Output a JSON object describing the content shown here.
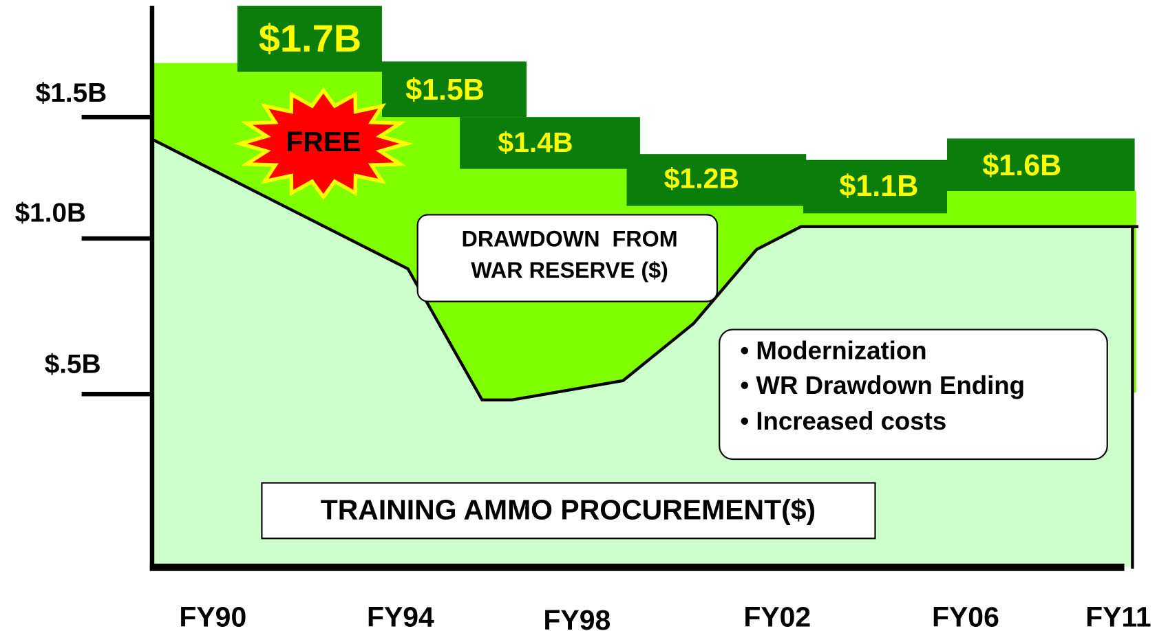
{
  "y_axis": {
    "labels": [
      "$1.5B",
      "$1.0B",
      "$.5B"
    ]
  },
  "x_axis": {
    "labels": [
      "FY90",
      "FY94",
      "FY98",
      "FY02",
      "FY06",
      "FY11"
    ]
  },
  "budgets": [
    "$1.7B",
    "$1.5B",
    "$1.4B",
    "$1.2B",
    "$1.1B",
    "$1.6B"
  ],
  "starburst": "FREE",
  "drawdown": {
    "lines": [
      "DRAWDOWN  FROM",
      "WAR RESERVE ($)"
    ]
  },
  "drivers": {
    "items": [
      "• Modernization",
      "• WR Drawdown Ending",
      "• Increased costs"
    ]
  },
  "training": "TRAINING AMMO PROCUREMENT($)"
}
